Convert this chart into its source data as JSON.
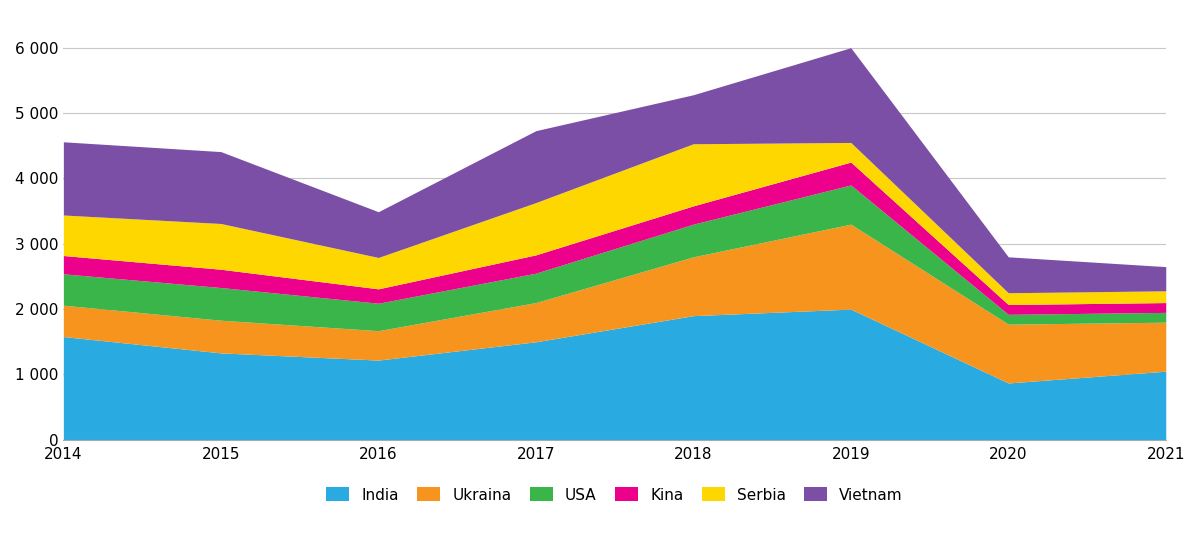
{
  "years": [
    2014,
    2015,
    2016,
    2017,
    2018,
    2019,
    2020,
    2021
  ],
  "series": {
    "India": [
      1580,
      1330,
      1220,
      1500,
      1900,
      2000,
      870,
      1050
    ],
    "Ukraina": [
      480,
      500,
      450,
      600,
      900,
      1300,
      900,
      750
    ],
    "USA": [
      480,
      500,
      420,
      450,
      500,
      600,
      150,
      150
    ],
    "Kina": [
      280,
      280,
      220,
      280,
      280,
      350,
      150,
      150
    ],
    "Serbia": [
      620,
      700,
      480,
      800,
      950,
      300,
      180,
      180
    ],
    "Vietnam": [
      1120,
      1100,
      700,
      1100,
      750,
      1450,
      550,
      370
    ]
  },
  "colors": {
    "India": "#29abe2",
    "Ukraina": "#f7941d",
    "USA": "#39b54a",
    "Kina": "#ec008c",
    "Serbia": "#ffd700",
    "Vietnam": "#7b4fa6"
  },
  "ylim": [
    0,
    6500
  ],
  "yticks": [
    0,
    1000,
    2000,
    3000,
    4000,
    5000,
    6000
  ],
  "ytick_labels": [
    "0",
    "1 000",
    "2 000",
    "3 000",
    "4 000",
    "5 000",
    "6 000"
  ],
  "background_color": "#ffffff",
  "grid_color": "#c8c8c8"
}
